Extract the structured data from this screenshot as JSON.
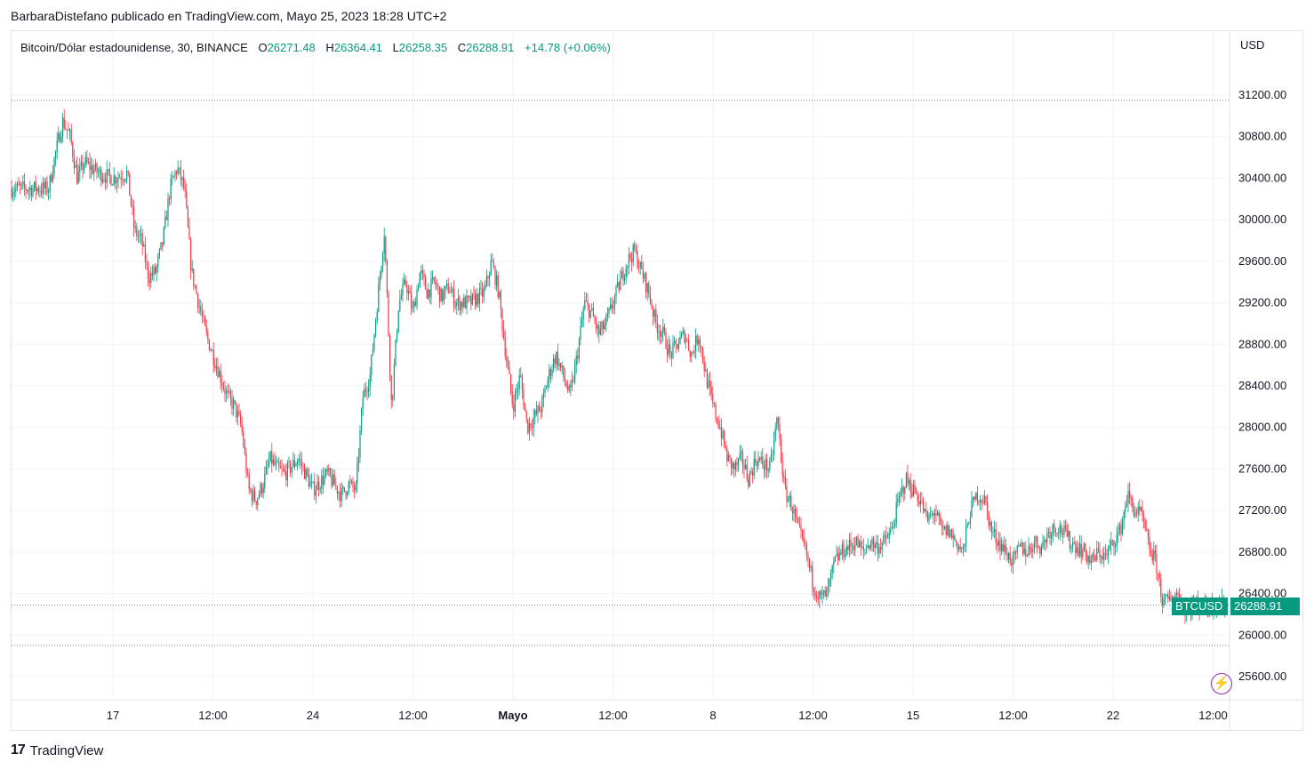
{
  "header": {
    "author_line": "BarbaraDistefano publicado en TradingView.com, Mayo 25, 2023 18:28 UTC+2"
  },
  "legend": {
    "symbol": "Bitcoin/Dólar estadounidense, 30, BINANCE",
    "open_label": "O",
    "open": "26271.48",
    "high_label": "H",
    "high": "26364.41",
    "low_label": "L",
    "low": "26258.35",
    "close_label": "C",
    "close": "26288.91",
    "change": "+14.78 (+0.06%)"
  },
  "price_axis": {
    "currency": "USD",
    "ticks": [
      "31200.00",
      "30800.00",
      "30400.00",
      "30000.00",
      "29600.00",
      "29200.00",
      "28800.00",
      "28400.00",
      "28000.00",
      "27600.00",
      "27200.00",
      "26800.00",
      "26400.00",
      "26000.00",
      "25600.00"
    ]
  },
  "time_axis": {
    "ticks": [
      "17",
      "12:00",
      "24",
      "12:00",
      "Mayo",
      "12:00",
      "8",
      "12:00",
      "15",
      "12:00",
      "22",
      "12:00"
    ]
  },
  "last_price": {
    "symbol_tag": "BTCUSD",
    "price_tag": "26288.91"
  },
  "footer": {
    "brand": "TradingView",
    "logo_glyph": "17"
  },
  "colors": {
    "up": "#089981",
    "down": "#f23645",
    "grid": "#f0f3fa",
    "axis_text": "#131722",
    "flash_icon": "#9c27b0"
  },
  "icons": {
    "flash": "lightning-bolt-icon",
    "logo": "tradingview-logo-icon"
  },
  "chart_data": {
    "type": "candlestick",
    "title": "Bitcoin/Dólar estadounidense, 30, BINANCE",
    "xlabel": "",
    "ylabel": "",
    "ylim": [
      25400,
      31700
    ],
    "grid": true,
    "y_ticks": [
      31200,
      30800,
      30400,
      30000,
      29600,
      29200,
      28800,
      28400,
      28000,
      27600,
      27200,
      26800,
      26400,
      26000,
      25600
    ],
    "x_ticks": [
      "17",
      "12:00",
      "24",
      "12:00",
      "Mayo",
      "12:00",
      "8",
      "12:00",
      "15",
      "12:00",
      "22",
      "12:00"
    ],
    "reference_lines": [
      31150,
      26289,
      25900
    ],
    "close_path": [
      [
        "Apr 14 18:00",
        30300
      ],
      [
        "Apr 15 00:00",
        30650
      ],
      [
        "Apr 15 06:00",
        30950
      ],
      [
        "Apr 15 12:00",
        30800
      ],
      [
        "Apr 15 18:00",
        30400
      ],
      [
        "Apr 16 00:00",
        30550
      ],
      [
        "Apr 16 12:00",
        30450
      ],
      [
        "Apr 17 00:00",
        30400
      ],
      [
        "Apr 17 12:00",
        30450
      ],
      [
        "Apr 17 18:00",
        29900
      ],
      [
        "Apr 18 00:00",
        29800
      ],
      [
        "Apr 18 06:00",
        29450
      ],
      [
        "Apr 18 12:00",
        29500
      ],
      [
        "Apr 18 18:00",
        29800
      ],
      [
        "Apr 19 00:00",
        30300
      ],
      [
        "Apr 19 06:00",
        30500
      ],
      [
        "Apr 19 12:00",
        30300
      ],
      [
        "Apr 19 18:00",
        29500
      ],
      [
        "Apr 20 00:00",
        29200
      ],
      [
        "Apr 20 06:00",
        28900
      ],
      [
        "Apr 20 12:00",
        28700
      ],
      [
        "Apr 20 18:00",
        28500
      ],
      [
        "Apr 21 00:00",
        28300
      ],
      [
        "Apr 21 06:00",
        28200
      ],
      [
        "Apr 21 12:00",
        28000
      ],
      [
        "Apr 21 18:00",
        27400
      ],
      [
        "Apr 22 00:00",
        27300
      ],
      [
        "Apr 22 06:00",
        27450
      ],
      [
        "Apr 22 12:00",
        27700
      ],
      [
        "Apr 22 18:00",
        27600
      ],
      [
        "Apr 23 00:00",
        27550
      ],
      [
        "Apr 23 12:00",
        27700
      ],
      [
        "Apr 24 00:00",
        27400
      ],
      [
        "Apr 24 12:00",
        27550
      ],
      [
        "Apr 25 00:00",
        27350
      ],
      [
        "Apr 25 06:00",
        27450
      ],
      [
        "Apr 25 12:00",
        27400
      ],
      [
        "Apr 25 18:00",
        28300
      ],
      [
        "Apr 26 00:00",
        28500
      ],
      [
        "Apr 26 06:00",
        29200
      ],
      [
        "Apr 26 12:00",
        29900
      ],
      [
        "Apr 26 18:00",
        28200
      ],
      [
        "Apr 27 00:00",
        29200
      ],
      [
        "Apr 27 06:00",
        29400
      ],
      [
        "Apr 27 12:00",
        29100
      ],
      [
        "Apr 27 18:00",
        29500
      ],
      [
        "Apr 28 00:00",
        29300
      ],
      [
        "Apr 28 06:00",
        29400
      ],
      [
        "Apr 28 12:00",
        29250
      ],
      [
        "Apr 28 18:00",
        29350
      ],
      [
        "Apr 29 00:00",
        29200
      ],
      [
        "Apr 29 12:00",
        29200
      ],
      [
        "Apr 30 00:00",
        29300
      ],
      [
        "Apr 30 06:00",
        29600
      ],
      [
        "Apr 30 12:00",
        29300
      ],
      [
        "Apr 30 18:00",
        28700
      ],
      [
        "May 01 00:00",
        28200
      ],
      [
        "May 01 06:00",
        28500
      ],
      [
        "May 01 12:00",
        28000
      ],
      [
        "May 01 18:00",
        28100
      ],
      [
        "May 02 00:00",
        28200
      ],
      [
        "May 02 06:00",
        28500
      ],
      [
        "May 02 12:00",
        28700
      ],
      [
        "May 02 18:00",
        28500
      ],
      [
        "May 03 00:00",
        28300
      ],
      [
        "May 03 06:00",
        28700
      ],
      [
        "May 03 12:00",
        29200
      ],
      [
        "May 03 18:00",
        29100
      ],
      [
        "May 04 00:00",
        28900
      ],
      [
        "May 04 06:00",
        29000
      ],
      [
        "May 04 12:00",
        29200
      ],
      [
        "May 04 18:00",
        29400
      ],
      [
        "May 05 00:00",
        29600
      ],
      [
        "May 05 06:00",
        29700
      ],
      [
        "May 05 12:00",
        29500
      ],
      [
        "May 05 18:00",
        29300
      ],
      [
        "May 06 00:00",
        29000
      ],
      [
        "May 06 06:00",
        28900
      ],
      [
        "May 06 12:00",
        28700
      ],
      [
        "May 06 18:00",
        28800
      ],
      [
        "May 07 00:00",
        28900
      ],
      [
        "May 07 06:00",
        28700
      ],
      [
        "May 07 12:00",
        28900
      ],
      [
        "May 07 18:00",
        28500
      ],
      [
        "May 08 00:00",
        28200
      ],
      [
        "May 08 06:00",
        28000
      ],
      [
        "May 08 12:00",
        27700
      ],
      [
        "May 08 18:00",
        27600
      ],
      [
        "May 09 00:00",
        27700
      ],
      [
        "May 09 06:00",
        27500
      ],
      [
        "May 09 12:00",
        27700
      ],
      [
        "May 09 18:00",
        27650
      ],
      [
        "May 10 00:00",
        27600
      ],
      [
        "May 10 06:00",
        28100
      ],
      [
        "May 10 12:00",
        27400
      ],
      [
        "May 10 18:00",
        27250
      ],
      [
        "May 11 00:00",
        27000
      ],
      [
        "May 11 06:00",
        26800
      ],
      [
        "May 11 12:00",
        26500
      ],
      [
        "May 11 18:00",
        26350
      ],
      [
        "May 12 00:00",
        26400
      ],
      [
        "May 12 06:00",
        26700
      ],
      [
        "May 12 12:00",
        26800
      ],
      [
        "May 12 18:00",
        26850
      ],
      [
        "May 13 00:00",
        26900
      ],
      [
        "May 13 06:00",
        26800
      ],
      [
        "May 13 12:00",
        26900
      ],
      [
        "May 13 18:00",
        26850
      ],
      [
        "May 14 00:00",
        26900
      ],
      [
        "May 14 06:00",
        27000
      ],
      [
        "May 14 12:00",
        27300
      ],
      [
        "May 14 18:00",
        27500
      ],
      [
        "May 15 00:00",
        27400
      ],
      [
        "May 15 06:00",
        27300
      ],
      [
        "May 15 12:00",
        27100
      ],
      [
        "May 15 18:00",
        27200
      ],
      [
        "May 16 00:00",
        27000
      ],
      [
        "May 16 06:00",
        27000
      ],
      [
        "May 16 12:00",
        26900
      ],
      [
        "May 16 18:00",
        26800
      ],
      [
        "May 17 00:00",
        27200
      ],
      [
        "May 17 06:00",
        27350
      ],
      [
        "May 17 12:00",
        27300
      ],
      [
        "May 17 18:00",
        27000
      ],
      [
        "May 18 00:00",
        26900
      ],
      [
        "May 18 06:00",
        26800
      ],
      [
        "May 18 12:00",
        26700
      ],
      [
        "May 18 18:00",
        26850
      ],
      [
        "May 19 00:00",
        26800
      ],
      [
        "May 19 06:00",
        26900
      ],
      [
        "May 19 12:00",
        26850
      ],
      [
        "May 19 18:00",
        27000
      ],
      [
        "May 20 00:00",
        27050
      ],
      [
        "May 20 06:00",
        27000
      ],
      [
        "May 20 12:00",
        26900
      ],
      [
        "May 20 18:00",
        26850
      ],
      [
        "May 21 00:00",
        26800
      ],
      [
        "May 21 06:00",
        26700
      ],
      [
        "May 21 12:00",
        26800
      ],
      [
        "May 21 18:00",
        26750
      ],
      [
        "May 22 00:00",
        26900
      ],
      [
        "May 22 06:00",
        27000
      ],
      [
        "May 22 12:00",
        27350
      ],
      [
        "May 22 18:00",
        27200
      ],
      [
        "May 23 00:00",
        27150
      ],
      [
        "May 23 06:00",
        26850
      ],
      [
        "May 23 12:00",
        26700
      ],
      [
        "May 23 18:00",
        26300
      ],
      [
        "May 24 00:00",
        26350
      ],
      [
        "May 24 06:00",
        26400
      ],
      [
        "May 24 12:00",
        26250
      ],
      [
        "May 24 18:00",
        26289
      ]
    ]
  }
}
